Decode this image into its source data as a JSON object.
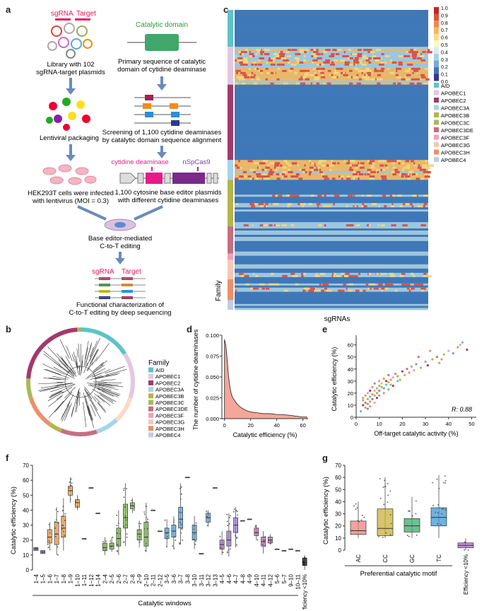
{
  "panels": {
    "a": "a",
    "b": "b",
    "c": "c",
    "d": "d",
    "e": "e",
    "f": "f",
    "g": "g"
  },
  "panel_a": {
    "sgrna_label": "sgRNA",
    "target_label": "Target",
    "library_caption_1": "Library with 102",
    "library_caption_2": "sgRNA-target plasmids",
    "lentiviral_caption": "Lentiviral packaging",
    "hek_caption_1": "HEK293T cells were infected",
    "hek_caption_2": "with lentivirus (MOI = 0.3)",
    "catalytic_domain_label": "Catalytic domain",
    "primary_caption_1": "Primary sequence of catalytic",
    "primary_caption_2": "domain of cytidine deaminase",
    "screening_caption_1": "Screening of 1,100 cytidine deaminases",
    "screening_caption_2": "by catalytic domain sequence alignment",
    "deaminase_label": "cytidine deaminase",
    "cas9_label": "nSpCas9",
    "plasmids_caption_1": "1,100 cytosine base editor plasmids",
    "plasmids_caption_2": "with different cytidine deaminases",
    "editing_caption_1": "Base editor-mediated",
    "editing_caption_2": "C-to-T editing",
    "sgrna_label_2": "sgRNA",
    "target_label_2": "Target",
    "functional_caption_1": "Functional characterization of",
    "functional_caption_2": "C-to-T editing by deep sequencing"
  },
  "panel_c": {
    "xlabel": "sgRNAs",
    "family_label": "Family",
    "colorbar_ticks": [
      "1.0",
      "0.9",
      "0.8",
      "0.7",
      "0.6",
      "0.5",
      "0.4",
      "0.3",
      "0.2",
      "0.1",
      "0.0"
    ],
    "families": [
      {
        "name": "AID",
        "color": "#5fc3c8"
      },
      {
        "name": "APOBEC1",
        "color": "#e3c7e2"
      },
      {
        "name": "APOBEC2",
        "color": "#a13a6b"
      },
      {
        "name": "APOBEC3A",
        "color": "#a5d4ec"
      },
      {
        "name": "APOBEC3B",
        "color": "#b5b44a"
      },
      {
        "name": "APOBEC3C",
        "color": "#a7b95d"
      },
      {
        "name": "APOBEC3DE",
        "color": "#c46f82"
      },
      {
        "name": "APOBEC3F",
        "color": "#eea2b9"
      },
      {
        "name": "APOBEC3G",
        "color": "#f7c7b4"
      },
      {
        "name": "APOBEC3H",
        "color": "#ee8f69"
      },
      {
        "name": "APOBEC4",
        "color": "#c0cce6"
      }
    ]
  },
  "panel_b": {
    "legend_title": "Family",
    "families": [
      "AID",
      "APOBEC1",
      "APOBEC2",
      "APOBEC3A",
      "APOBEC3B",
      "APOBEC3C",
      "APOBEC3DE",
      "APOBEC3F",
      "APOBEC3G",
      "APOBEC3H",
      "APOBEC4"
    ]
  },
  "chart_data": [
    {
      "panel": "d",
      "type": "area",
      "xlabel": "Catalytic efficiency (%)",
      "ylabel": "The number of cytidine deaminases",
      "xlim": [
        -2,
        64
      ],
      "ylim": [
        0,
        0.1
      ],
      "xticks": [
        "0",
        "20",
        "40",
        "60"
      ],
      "yticks": [
        "0.000",
        "0.025",
        "0.050",
        "0.075",
        "0.100"
      ],
      "x": [
        0,
        1,
        2,
        3,
        4,
        5,
        6,
        8,
        10,
        12,
        15,
        18,
        20,
        25,
        30,
        35,
        40,
        45,
        50,
        55,
        60,
        63
      ],
      "y": [
        0.095,
        0.088,
        0.072,
        0.052,
        0.04,
        0.031,
        0.026,
        0.021,
        0.017,
        0.014,
        0.011,
        0.009,
        0.008,
        0.007,
        0.006,
        0.006,
        0.005,
        0.005,
        0.004,
        0.003,
        0.002,
        0.002
      ],
      "fill": "#f4a69a"
    },
    {
      "panel": "e",
      "type": "scatter",
      "xlabel": "Off-target catalytic activity (%)",
      "ylabel": "Catalytic efficiency (%)",
      "annotation": "R: 0.88",
      "xlim": [
        0,
        52
      ],
      "ylim": [
        0,
        68
      ],
      "xticks": [
        "0",
        "10",
        "20",
        "30",
        "40",
        "50"
      ],
      "yticks": [
        "0",
        "10",
        "20",
        "30",
        "40",
        "50",
        "60"
      ],
      "points": [
        [
          2,
          5
        ],
        [
          3,
          10
        ],
        [
          3,
          14
        ],
        [
          4,
          12
        ],
        [
          4,
          18
        ],
        [
          5,
          15
        ],
        [
          5,
          20
        ],
        [
          5,
          11
        ],
        [
          6,
          13
        ],
        [
          6,
          17
        ],
        [
          6,
          22
        ],
        [
          7,
          19
        ],
        [
          7,
          15
        ],
        [
          7,
          25
        ],
        [
          8,
          18
        ],
        [
          8,
          22
        ],
        [
          8,
          28
        ],
        [
          9,
          20
        ],
        [
          9,
          24
        ],
        [
          9,
          16
        ],
        [
          10,
          26
        ],
        [
          10,
          22
        ],
        [
          10,
          30
        ],
        [
          11,
          25
        ],
        [
          11,
          28
        ],
        [
          12,
          24
        ],
        [
          12,
          32
        ],
        [
          13,
          27
        ],
        [
          13,
          30
        ],
        [
          14,
          29
        ],
        [
          14,
          35
        ],
        [
          15,
          31
        ],
        [
          15,
          27
        ],
        [
          16,
          33
        ],
        [
          17,
          36
        ],
        [
          18,
          34
        ],
        [
          18,
          30
        ],
        [
          20,
          38
        ],
        [
          21,
          35
        ],
        [
          22,
          40
        ],
        [
          23,
          37
        ],
        [
          24,
          42
        ],
        [
          25,
          39
        ],
        [
          26,
          44
        ],
        [
          28,
          41
        ],
        [
          30,
          46
        ],
        [
          31,
          43
        ],
        [
          33,
          48
        ],
        [
          35,
          50
        ],
        [
          36,
          45
        ],
        [
          38,
          52
        ],
        [
          40,
          55
        ],
        [
          42,
          53
        ],
        [
          44,
          58
        ],
        [
          46,
          62
        ],
        [
          48,
          56
        ],
        [
          4,
          8
        ],
        [
          5,
          7
        ],
        [
          6,
          9
        ],
        [
          3,
          16
        ],
        [
          8,
          12
        ],
        [
          10,
          18
        ],
        [
          12,
          20
        ],
        [
          14,
          23
        ],
        [
          16,
          26
        ],
        [
          19,
          31
        ],
        [
          27,
          50
        ],
        [
          32,
          55
        ],
        [
          37,
          48
        ],
        [
          45,
          60
        ]
      ]
    },
    {
      "panel": "f",
      "type": "box",
      "ylabel": "Catalytic efficiency (%)",
      "xlabel": "Catalytic windows",
      "ylim": [
        0,
        70
      ],
      "yticks": [
        "0",
        "10",
        "20",
        "30",
        "40",
        "50",
        "60",
        "70"
      ],
      "categories": [
        "1–4",
        "1–5",
        "1–6",
        "1–7",
        "1–8",
        "1–9",
        "1–10",
        "1–11",
        "1–12",
        "1–14",
        "2–4",
        "2–5",
        "2–6",
        "2–7",
        "2–8",
        "2–9",
        "2–10",
        "2–11",
        "2–12",
        "3–5",
        "3–6",
        "3–7",
        "3–8",
        "3–10",
        "3–11",
        "3–12",
        "3–13",
        "4–5",
        "4–6",
        "4–7",
        "4–8",
        "4–9",
        "4–10",
        "4–11",
        "4–12",
        "5–6",
        "5–7",
        "9–10",
        "10–11",
        "Efficiency <10%"
      ],
      "boxes": [
        {
          "q1": 13,
          "med": 14,
          "q3": 15,
          "lo": 13,
          "hi": 15,
          "color": "#8a8ac8"
        },
        {
          "q1": 11,
          "med": 12,
          "q3": 13,
          "lo": 11,
          "hi": 13,
          "color": "#8a8ac8"
        },
        {
          "q1": 18,
          "med": 22,
          "q3": 27,
          "lo": 13,
          "hi": 32,
          "color": "#f0a04b"
        },
        {
          "q1": 17,
          "med": 24,
          "q3": 32,
          "lo": 10,
          "hi": 42,
          "color": "#f0a04b"
        },
        {
          "q1": 22,
          "med": 28,
          "q3": 36,
          "lo": 13,
          "hi": 48,
          "color": "#f0a04b"
        },
        {
          "q1": 50,
          "med": 53,
          "q3": 56,
          "lo": 45,
          "hi": 62,
          "color": "#f0a04b"
        },
        {
          "q1": 42,
          "med": 45,
          "q3": 47,
          "lo": 40,
          "hi": 50,
          "color": "#f0a04b"
        },
        {
          "q1": 21,
          "med": 21,
          "q3": 21,
          "lo": 21,
          "hi": 21,
          "color": "#f0a04b"
        },
        {
          "q1": 55,
          "med": 55,
          "q3": 55,
          "lo": 55,
          "hi": 55,
          "color": "#f0a04b"
        },
        {
          "q1": 38,
          "med": 38,
          "q3": 38,
          "lo": 38,
          "hi": 38,
          "color": "#f0a04b"
        },
        {
          "q1": 13,
          "med": 15,
          "q3": 18,
          "lo": 10,
          "hi": 22,
          "color": "#7ab648"
        },
        {
          "q1": 14,
          "med": 16,
          "q3": 18,
          "lo": 12,
          "hi": 22,
          "color": "#7ab648"
        },
        {
          "q1": 16,
          "med": 21,
          "q3": 28,
          "lo": 10,
          "hi": 40,
          "color": "#7ab648"
        },
        {
          "q1": 28,
          "med": 35,
          "q3": 44,
          "lo": 16,
          "hi": 58,
          "color": "#7ab648"
        },
        {
          "q1": 41,
          "med": 43,
          "q3": 45,
          "lo": 38,
          "hi": 48,
          "color": "#7ab648"
        },
        {
          "q1": 20,
          "med": 24,
          "q3": 27,
          "lo": 15,
          "hi": 33,
          "color": "#7ab648"
        },
        {
          "q1": 16,
          "med": 22,
          "q3": 32,
          "lo": 12,
          "hi": 45,
          "color": "#7ab648"
        },
        {
          "q1": 40,
          "med": 40,
          "q3": 40,
          "lo": 40,
          "hi": 40,
          "color": "#7ab648"
        },
        {
          "q1": 26,
          "med": 26,
          "q3": 26,
          "lo": 26,
          "hi": 26,
          "color": "#7ab648"
        },
        {
          "q1": 21,
          "med": 25,
          "q3": 28,
          "lo": 15,
          "hi": 34,
          "color": "#5aa6dc"
        },
        {
          "q1": 22,
          "med": 26,
          "q3": 30,
          "lo": 14,
          "hi": 36,
          "color": "#5aa6dc"
        },
        {
          "q1": 28,
          "med": 34,
          "q3": 42,
          "lo": 17,
          "hi": 58,
          "color": "#5aa6dc"
        },
        {
          "q1": 62,
          "med": 62,
          "q3": 62,
          "lo": 62,
          "hi": 62,
          "color": "#5aa6dc"
        },
        {
          "q1": 20,
          "med": 25,
          "q3": 30,
          "lo": 14,
          "hi": 36,
          "color": "#5aa6dc"
        },
        {
          "q1": 11,
          "med": 11,
          "q3": 11,
          "lo": 11,
          "hi": 11,
          "color": "#5aa6dc"
        },
        {
          "q1": 32,
          "med": 35,
          "q3": 38,
          "lo": 29,
          "hi": 40,
          "color": "#5aa6dc"
        },
        {
          "q1": 55,
          "med": 55,
          "q3": 55,
          "lo": 55,
          "hi": 55,
          "color": "#5aa6dc"
        },
        {
          "q1": 14,
          "med": 17,
          "q3": 20,
          "lo": 10,
          "hi": 26,
          "color": "#9b7ac7"
        },
        {
          "q1": 16,
          "med": 20,
          "q3": 26,
          "lo": 9,
          "hi": 38,
          "color": "#9b7ac7"
        },
        {
          "q1": 25,
          "med": 30,
          "q3": 35,
          "lo": 15,
          "hi": 42,
          "color": "#9b7ac7"
        },
        {
          "q1": 33,
          "med": 33,
          "q3": 33,
          "lo": 33,
          "hi": 33,
          "color": "#9b7ac7"
        },
        {
          "q1": 34,
          "med": 34,
          "q3": 34,
          "lo": 34,
          "hi": 34,
          "color": "#9b7ac7"
        },
        {
          "q1": 23,
          "med": 25,
          "q3": 28,
          "lo": 20,
          "hi": 30,
          "color": "#c766b4"
        },
        {
          "q1": 16,
          "med": 19,
          "q3": 22,
          "lo": 11,
          "hi": 26,
          "color": "#c766b4"
        },
        {
          "q1": 18,
          "med": 20,
          "q3": 22,
          "lo": 17,
          "hi": 24,
          "color": "#c766b4"
        },
        {
          "q1": 14,
          "med": 14,
          "q3": 14,
          "lo": 14,
          "hi": 14,
          "color": "#e48fb2"
        },
        {
          "q1": 13,
          "med": 13,
          "q3": 13,
          "lo": 13,
          "hi": 13,
          "color": "#e48fb2"
        },
        {
          "q1": 14,
          "med": 14,
          "q3": 14,
          "lo": 14,
          "hi": 14,
          "color": "#e48fb2"
        },
        {
          "q1": 13,
          "med": 13,
          "q3": 13,
          "lo": 13,
          "hi": 13,
          "color": "#e48fb2"
        },
        {
          "q1": 3,
          "med": 5,
          "q3": 8,
          "lo": 0,
          "hi": 10,
          "color": "#111111"
        }
      ]
    },
    {
      "panel": "g",
      "type": "box",
      "ylabel": "Catalytic efficiency (%)",
      "xlabel": "Preferential catalytic motif",
      "ylim": [
        0,
        70
      ],
      "yticks": [
        "0",
        "10",
        "20",
        "30",
        "40",
        "50",
        "60",
        "70"
      ],
      "categories": [
        "AC",
        "CC",
        "GC",
        "TC",
        "Efficiency <10%"
      ],
      "boxes": [
        {
          "q1": 13,
          "med": 16,
          "q3": 24,
          "lo": 10,
          "hi": 40,
          "color": "#f08080"
        },
        {
          "q1": 12,
          "med": 18,
          "q3": 34,
          "lo": 10,
          "hi": 60,
          "color": "#c8b23a"
        },
        {
          "q1": 15,
          "med": 20,
          "q3": 26,
          "lo": 10,
          "hi": 44,
          "color": "#3cab6e"
        },
        {
          "q1": 20,
          "med": 27,
          "q3": 35,
          "lo": 10,
          "hi": 62,
          "color": "#3a9ad9"
        },
        {
          "q1": 2,
          "med": 4,
          "q3": 6,
          "lo": 0,
          "hi": 10,
          "color": "#b26ad1"
        }
      ]
    }
  ]
}
